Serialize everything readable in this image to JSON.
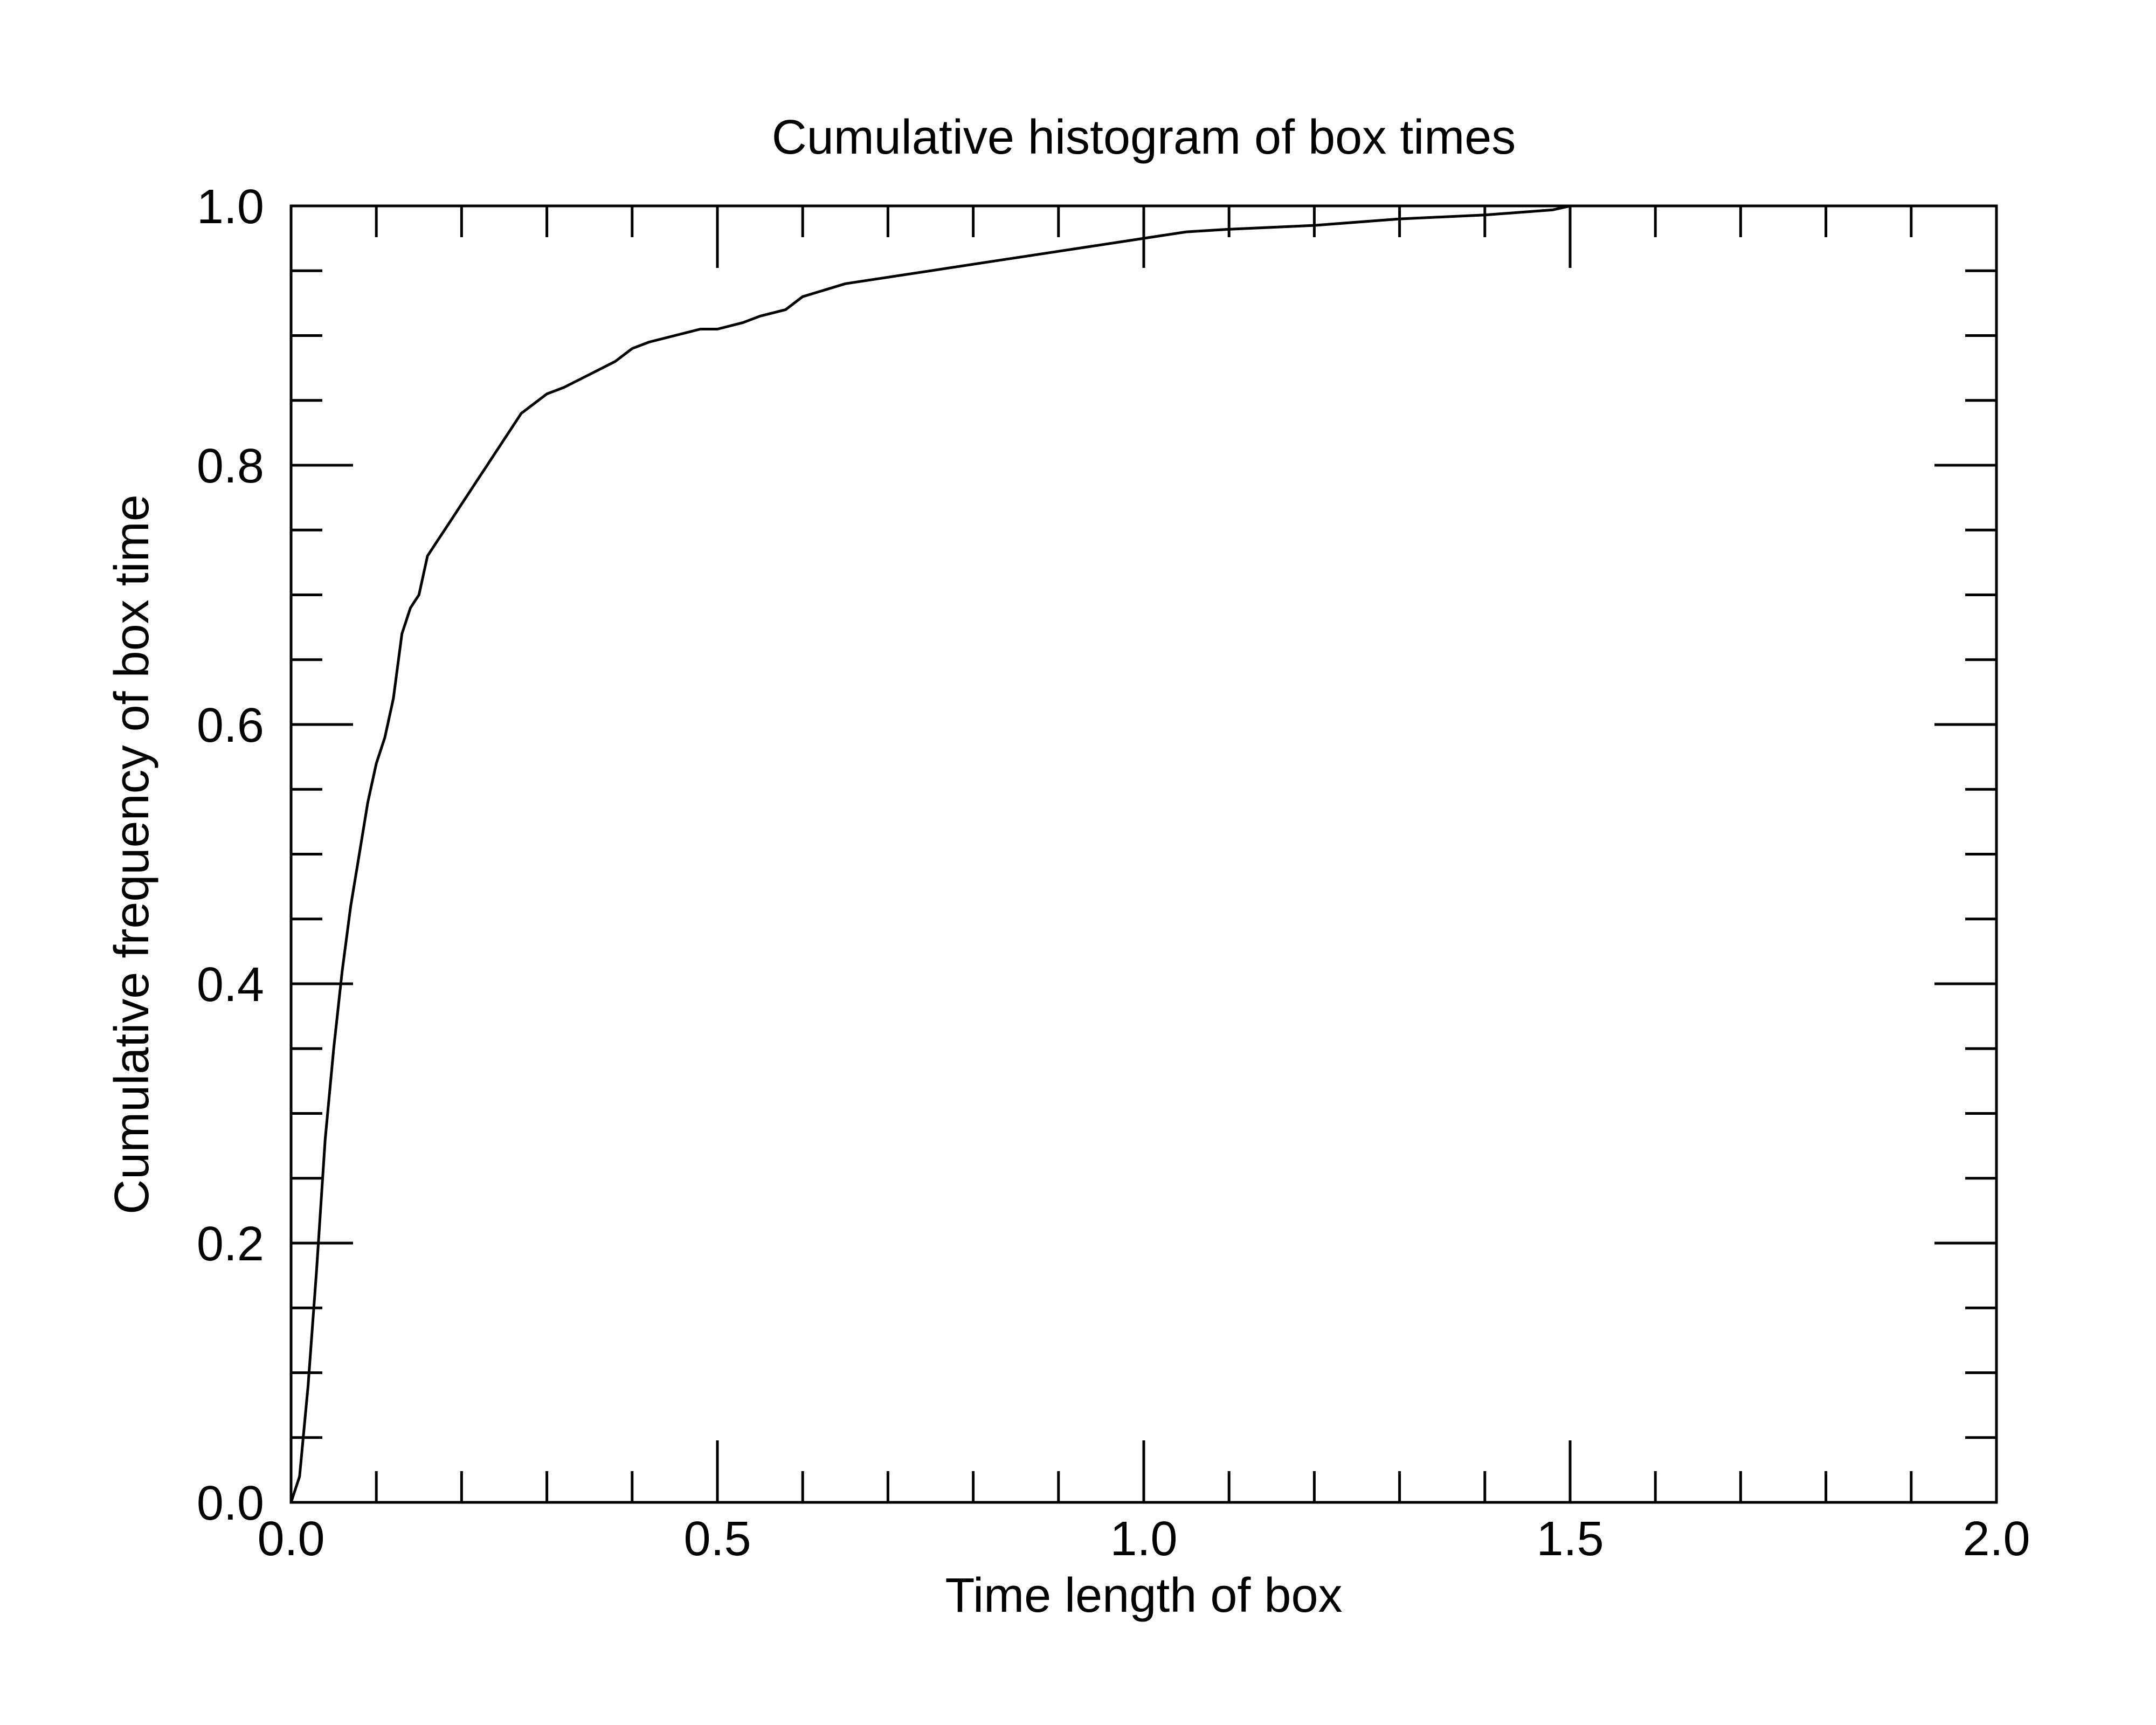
{
  "chart_data": {
    "type": "line",
    "title": "Cumulative histogram of box times",
    "xlabel": "Time length of box",
    "ylabel": "Cumulative frequency of box time",
    "xlim": [
      0.0,
      2.0
    ],
    "ylim": [
      0.0,
      1.0
    ],
    "x_ticks": [
      "0.0",
      "0.5",
      "1.0",
      "1.5",
      "2.0"
    ],
    "y_ticks": [
      "0.0",
      "0.2",
      "0.4",
      "0.6",
      "0.8",
      "1.0"
    ],
    "grid": false,
    "legend": "none",
    "line_color": "#000000",
    "series": [
      {
        "x": [
          0.0,
          0.01,
          0.02,
          0.03,
          0.04,
          0.05,
          0.06,
          0.07,
          0.08,
          0.09,
          0.1,
          0.11,
          0.12,
          0.13,
          0.14,
          0.15,
          0.16,
          0.17,
          0.18,
          0.19,
          0.2,
          0.21,
          0.22,
          0.23,
          0.24,
          0.25,
          0.26,
          0.27,
          0.28,
          0.3,
          0.32,
          0.35,
          0.38,
          0.4,
          0.42,
          0.45,
          0.48,
          0.5,
          0.53,
          0.55,
          0.58,
          0.6,
          0.65,
          0.7,
          0.75,
          0.8,
          0.85,
          0.9,
          0.95,
          1.0,
          1.05,
          1.1,
          1.2,
          1.3,
          1.4,
          1.48,
          1.5,
          1.6,
          1.7
        ],
        "y": [
          0.0,
          0.02,
          0.09,
          0.18,
          0.28,
          0.35,
          0.41,
          0.46,
          0.5,
          0.54,
          0.57,
          0.59,
          0.62,
          0.67,
          0.69,
          0.7,
          0.73,
          0.74,
          0.75,
          0.76,
          0.77,
          0.78,
          0.79,
          0.8,
          0.81,
          0.82,
          0.83,
          0.84,
          0.845,
          0.855,
          0.86,
          0.87,
          0.88,
          0.89,
          0.895,
          0.9,
          0.905,
          0.905,
          0.91,
          0.915,
          0.92,
          0.93,
          0.94,
          0.945,
          0.95,
          0.955,
          0.96,
          0.965,
          0.97,
          0.975,
          0.98,
          0.982,
          0.985,
          0.99,
          0.993,
          0.997,
          1.0,
          1.0,
          1.0
        ]
      }
    ]
  }
}
